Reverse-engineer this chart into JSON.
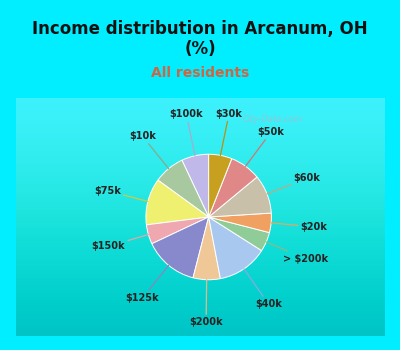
{
  "title": "Income distribution in Arcanum, OH\n(%)",
  "subtitle": "All residents",
  "title_color": "#111111",
  "subtitle_color": "#cc6644",
  "background_cyan": "#00eeff",
  "background_chart": "#dff2e8",
  "labels": [
    "$100k",
    "$10k",
    "$75k",
    "$150k",
    "$125k",
    "$200k",
    "$40k",
    "> $200k",
    "$20k",
    "$60k",
    "$50k",
    "$30k"
  ],
  "values": [
    7,
    8,
    12,
    5,
    14,
    7,
    13,
    5,
    5,
    10,
    8,
    6
  ],
  "colors": [
    "#c0b8e8",
    "#a8c8a0",
    "#f0f070",
    "#f0a8b0",
    "#8888cc",
    "#f0c898",
    "#a8c8f0",
    "#90cc98",
    "#f0a060",
    "#c8c0a8",
    "#e08888",
    "#c8a020"
  ],
  "start_angle": 90,
  "watermark": "City-Data.com",
  "figsize": [
    4.0,
    3.5
  ],
  "dpi": 100,
  "title_fontsize": 12,
  "subtitle_fontsize": 10,
  "label_fontsize": 7
}
